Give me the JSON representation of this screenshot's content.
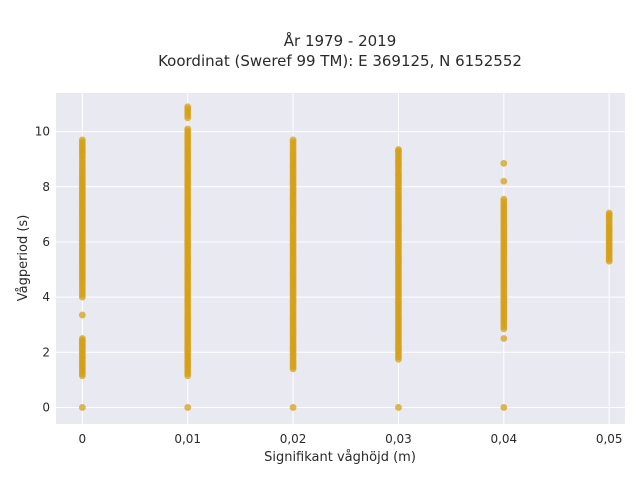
{
  "chart_data": {
    "type": "scatter",
    "title_lines": [
      "År 1979 - 2019",
      "Koordinat (Sweref 99 TM): E 369125, N 6152552"
    ],
    "xlabel": "Signifikant våghöjd (m)",
    "ylabel": "Vågperiod (s)",
    "xlim": [
      -0.0025,
      0.0515
    ],
    "ylim": [
      -0.6,
      11.4
    ],
    "x_ticks": [
      0,
      0.01,
      0.02,
      0.03,
      0.04,
      0.05
    ],
    "x_tick_labels": [
      "0",
      "0,01",
      "0,02",
      "0,03",
      "0,04",
      "0,05"
    ],
    "y_ticks": [
      0,
      2,
      4,
      6,
      8,
      10
    ],
    "y_tick_labels": [
      "0",
      "2",
      "4",
      "6",
      "8",
      "10"
    ],
    "grid": true,
    "colors": {
      "marker": "#d4a017",
      "plot_bg": "#e9e9f1",
      "grid": "#ffffff"
    },
    "series": [
      {
        "x": 0,
        "values": [
          0,
          1.15,
          1.3,
          1.5,
          1.7,
          1.9,
          2.1,
          2.3,
          2.5,
          3.35,
          4.0,
          4.35,
          4.6,
          4.8,
          5.0,
          5.2,
          5.4,
          5.6,
          5.8,
          6.0,
          6.2,
          6.4,
          6.6,
          6.8,
          7.0,
          7.2,
          7.4,
          7.6,
          7.8,
          8.0,
          8.2,
          8.4,
          8.7,
          8.95,
          9.2,
          9.4,
          9.7
        ]
      },
      {
        "x": 0.01,
        "values": [
          0,
          1.15,
          1.4,
          1.7,
          2.0,
          2.3,
          2.6,
          2.9,
          3.2,
          3.5,
          3.8,
          4.1,
          4.4,
          4.7,
          5.0,
          5.3,
          5.6,
          5.9,
          6.2,
          6.5,
          6.8,
          7.1,
          7.4,
          7.7,
          8.0,
          8.3,
          8.6,
          8.9,
          9.2,
          9.5,
          9.8,
          10.1,
          10.5,
          10.75,
          10.9
        ]
      },
      {
        "x": 0.02,
        "values": [
          0,
          1.4,
          1.7,
          2.0,
          2.3,
          2.6,
          2.9,
          3.2,
          3.5,
          3.8,
          4.1,
          4.4,
          4.7,
          5.0,
          5.3,
          5.6,
          5.9,
          6.2,
          6.5,
          6.8,
          7.1,
          7.4,
          7.7,
          8.0,
          8.3,
          8.6,
          8.9,
          9.2,
          9.45,
          9.7
        ]
      },
      {
        "x": 0.03,
        "values": [
          0,
          1.75,
          2.0,
          2.3,
          2.6,
          2.9,
          3.2,
          3.5,
          3.8,
          4.1,
          4.4,
          4.7,
          5.0,
          5.3,
          5.6,
          5.9,
          6.2,
          6.5,
          6.8,
          7.1,
          7.4,
          7.7,
          8.0,
          8.3,
          8.5,
          8.75,
          8.95,
          9.25,
          9.35
        ]
      },
      {
        "x": 0.04,
        "values": [
          0,
          2.5,
          2.85,
          3.1,
          3.4,
          3.7,
          4.0,
          4.3,
          4.6,
          4.9,
          5.2,
          5.5,
          5.8,
          6.1,
          6.4,
          6.7,
          7.0,
          7.3,
          7.55,
          8.2,
          8.85
        ]
      },
      {
        "x": 0.05,
        "values": [
          5.3,
          5.6,
          5.8,
          6.0,
          6.2,
          6.4,
          6.6,
          6.85,
          7.05
        ]
      }
    ]
  }
}
